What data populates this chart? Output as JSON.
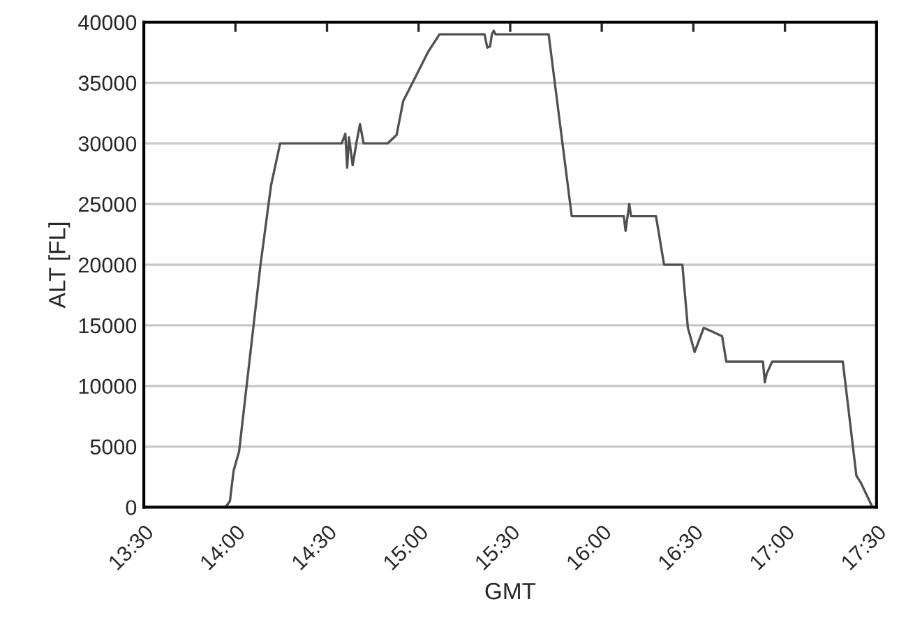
{
  "chart_data": {
    "type": "line",
    "xlabel": "GMT",
    "ylabel": "ALT [FL]",
    "xlim": [
      13.5,
      17.5
    ],
    "xticks": [
      {
        "value": 13.5,
        "label": "13:30"
      },
      {
        "value": 14.0,
        "label": "14:00"
      },
      {
        "value": 14.5,
        "label": "14:30"
      },
      {
        "value": 15.0,
        "label": "15:00"
      },
      {
        "value": 15.5,
        "label": "15:30"
      },
      {
        "value": 16.0,
        "label": "16:00"
      },
      {
        "value": 16.5,
        "label": "16:30"
      },
      {
        "value": 17.0,
        "label": "17:00"
      },
      {
        "value": 17.5,
        "label": "17:30"
      }
    ],
    "ylim": [
      0,
      40000
    ],
    "yticks": [
      0,
      5000,
      10000,
      15000,
      20000,
      25000,
      30000,
      35000,
      40000
    ],
    "grid": "y",
    "legend": false,
    "marker": "none",
    "line_style": "solid",
    "series": [
      {
        "color": "#505050",
        "x": [
          13.945,
          13.97,
          13.99,
          14.02,
          14.137,
          14.194,
          14.244,
          14.58,
          14.6,
          14.61,
          14.62,
          14.64,
          14.66,
          14.68,
          14.7,
          14.83,
          14.88,
          14.916,
          14.98,
          15.05,
          15.114,
          15.36,
          15.375,
          15.39,
          15.4,
          15.41,
          15.42,
          15.71,
          15.836,
          16.12,
          16.13,
          16.15,
          16.16,
          16.296,
          16.34,
          16.44,
          16.47,
          16.507,
          16.557,
          16.657,
          16.68,
          16.88,
          16.89,
          16.9,
          16.93,
          17.316,
          17.39,
          17.415,
          17.478
        ],
        "values": [
          0,
          500,
          3000,
          4600,
          20000,
          26500,
          30000,
          30000,
          30800,
          28000,
          30500,
          28200,
          30000,
          31600,
          30000,
          30000,
          30700,
          33500,
          35400,
          37500,
          39000,
          39000,
          37900,
          38000,
          39000,
          39300,
          39000,
          39000,
          24000,
          24000,
          22800,
          25000,
          24000,
          24000,
          20000,
          20000,
          14800,
          12800,
          14800,
          14100,
          12000,
          12000,
          10300,
          11000,
          12000,
          12000,
          2600,
          2000,
          0
        ]
      }
    ]
  }
}
